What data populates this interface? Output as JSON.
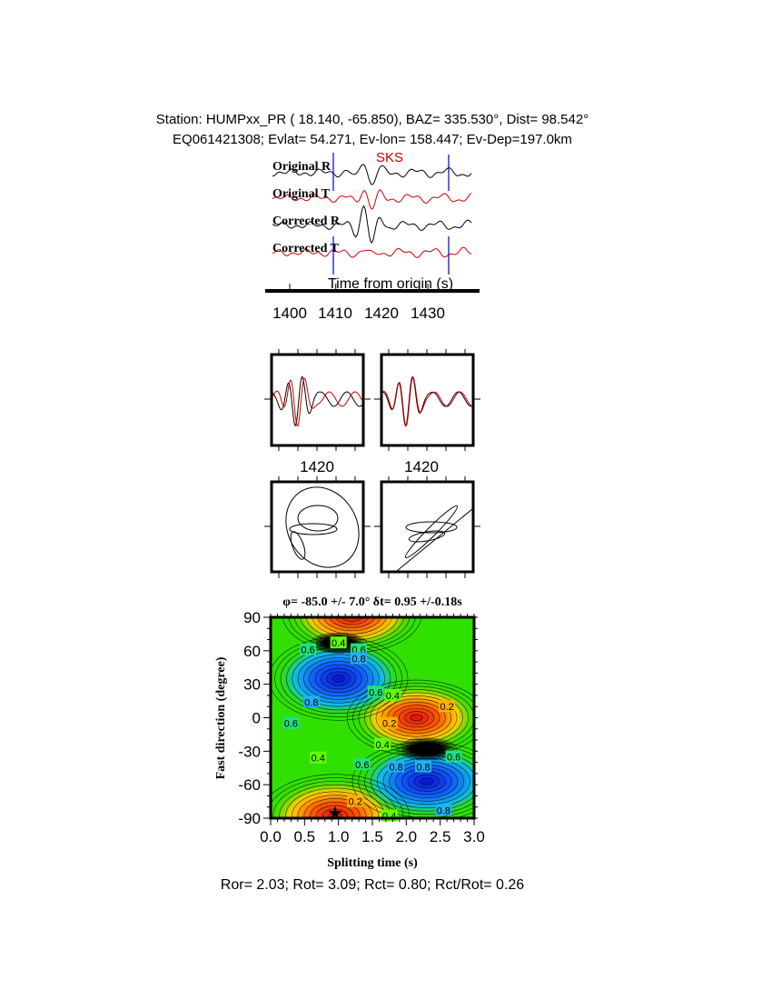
{
  "header": {
    "station_line": "Station: HUMPxx_PR (  18.140,  -65.850), BAZ=  335.530°, Dist=   98.542°",
    "event_line": "EQ061421308; Evlat=  54.271, Ev-lon= 158.447; Ev-Dep=197.0km"
  },
  "seismograms": {
    "phase_label": "SKS",
    "trace_labels": [
      "Original R",
      "Original T",
      "Corrected R",
      "Corrected T"
    ],
    "trace_colors": [
      "#000000",
      "#cc0000",
      "#000000",
      "#cc0000"
    ],
    "xlabel": "Time from origin (s)",
    "xticks": [
      "1400",
      "1410",
      "1420",
      "1430"
    ],
    "window_marker_color": "#0000cc",
    "window_s": [
      1409.6,
      1434.6
    ]
  },
  "particle_panels": {
    "tick_labels": [
      "1420",
      "1420"
    ]
  },
  "chart_data": {
    "type": "heatmap",
    "title": "φ= -85.0 +/- 7.0° δt= 0.95 +/-0.18s",
    "xlabel": "Splitting time (s)",
    "ylabel": "Fast direction (degree)",
    "xlim": [
      0,
      3
    ],
    "ylim": [
      -90,
      90
    ],
    "xticks": [
      "0.0",
      "0.5",
      "1.0",
      "1.5",
      "2.0",
      "2.5",
      "3.0"
    ],
    "yticks": [
      "90",
      "60",
      "30",
      "0",
      "-30",
      "-60",
      "-90"
    ],
    "best_fit": {
      "dt": 0.95,
      "phi": -85.0
    },
    "contour_labels": [
      {
        "text": "0.4",
        "dt": 1.0,
        "phi": 67
      },
      {
        "text": "0.6",
        "dt": 0.55,
        "phi": 61
      },
      {
        "text": "0.6",
        "dt": 1.3,
        "phi": 61
      },
      {
        "text": "0.8",
        "dt": 1.3,
        "phi": 53
      },
      {
        "text": "0.8",
        "dt": 0.6,
        "phi": 14
      },
      {
        "text": "0.6",
        "dt": 0.3,
        "phi": -5
      },
      {
        "text": "0.6",
        "dt": 1.55,
        "phi": 23
      },
      {
        "text": "0.4",
        "dt": 1.8,
        "phi": 20
      },
      {
        "text": "0.2",
        "dt": 1.75,
        "phi": -5
      },
      {
        "text": "0.2",
        "dt": 2.6,
        "phi": 10
      },
      {
        "text": "0.4",
        "dt": 1.65,
        "phi": -24
      },
      {
        "text": "0.4",
        "dt": 0.7,
        "phi": -36
      },
      {
        "text": "0.6",
        "dt": 1.35,
        "phi": -42
      },
      {
        "text": "0.8",
        "dt": 1.85,
        "phi": -44
      },
      {
        "text": "0.8",
        "dt": 2.25,
        "phi": -44
      },
      {
        "text": "0.6",
        "dt": 2.7,
        "phi": -35
      },
      {
        "text": "0.2",
        "dt": 1.25,
        "phi": -75
      },
      {
        "text": "0.4",
        "dt": 1.75,
        "phi": -88
      },
      {
        "text": "0.8",
        "dt": 2.55,
        "phi": -83
      }
    ]
  },
  "footer": {
    "ratios": "Ror= 2.03; Rot= 3.09; Rct= 0.80; Rct/Rot= 0.26"
  }
}
